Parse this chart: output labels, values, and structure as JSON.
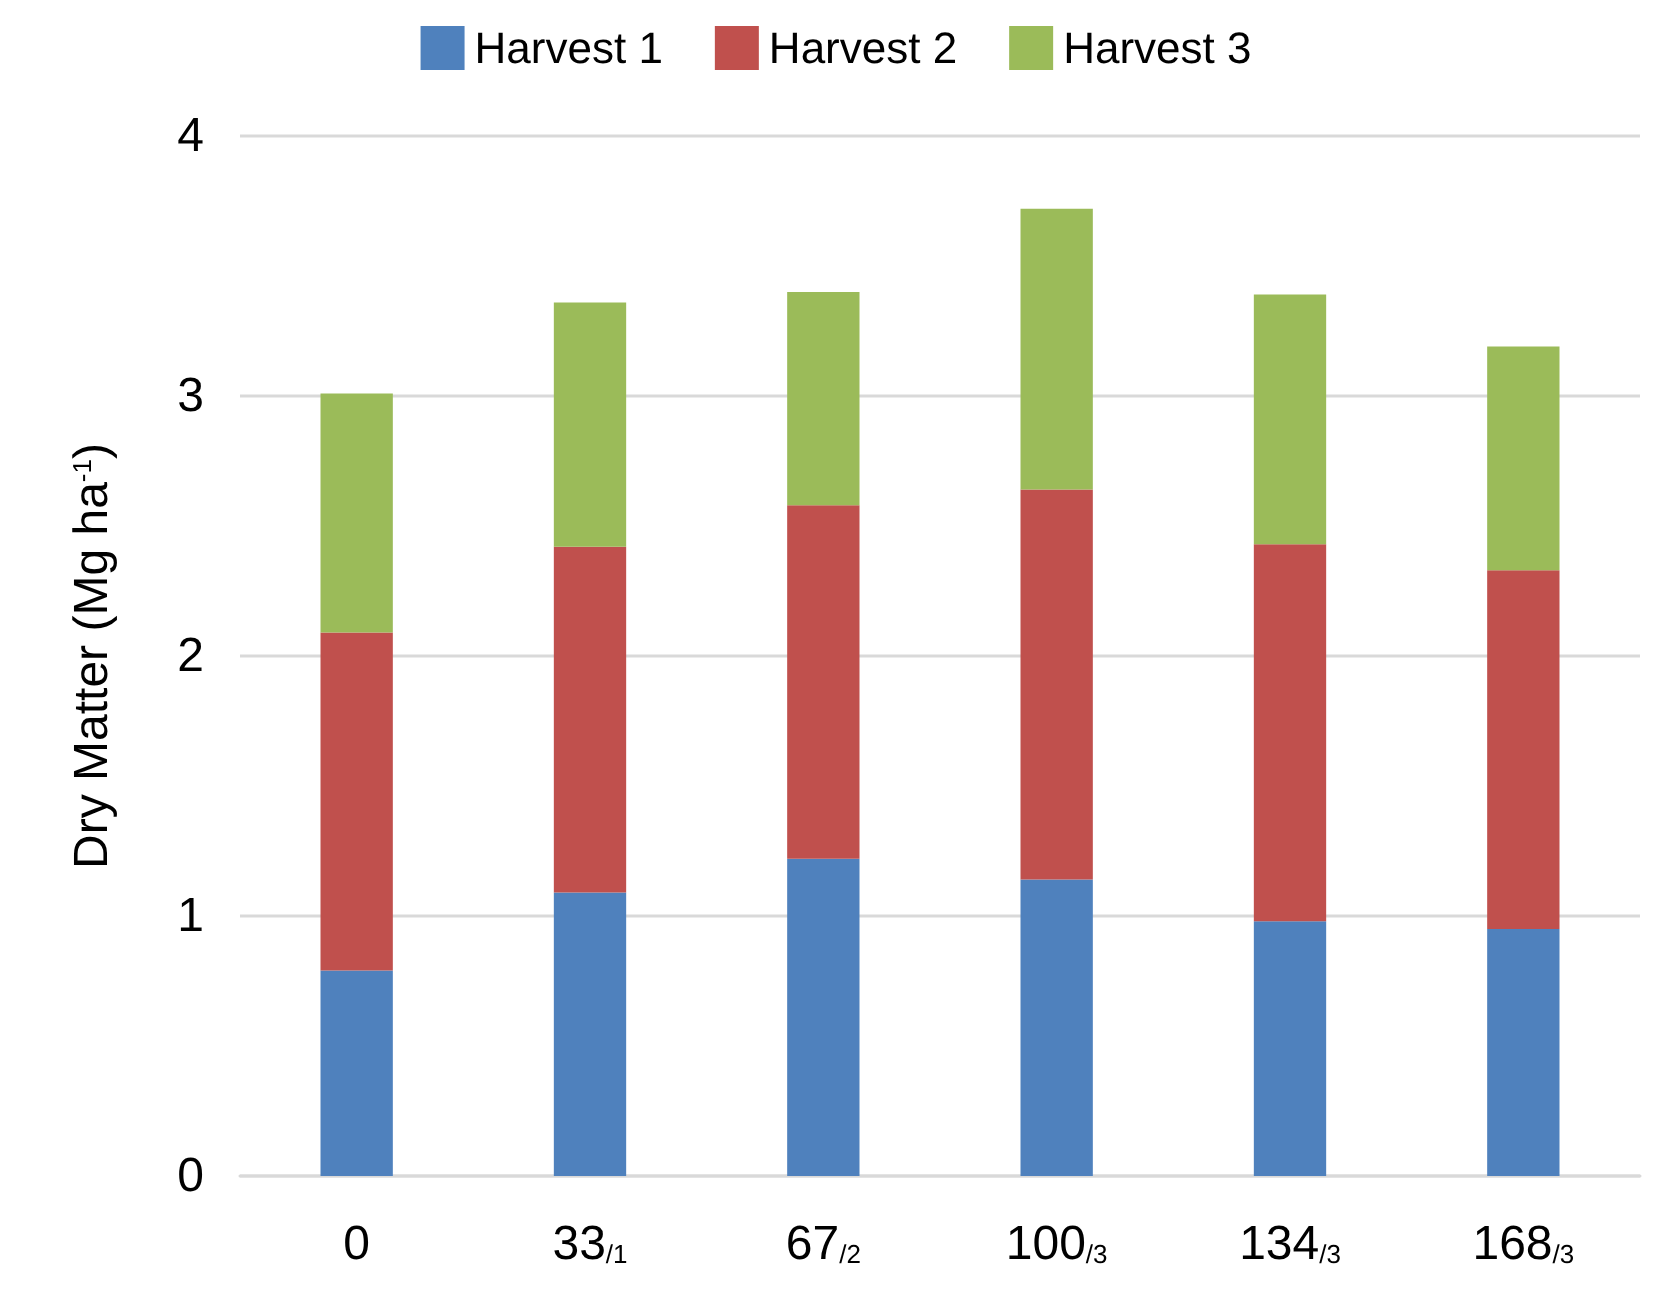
{
  "chart_data": {
    "type": "bar",
    "stacked": true,
    "ylabel": "Dry Matter (Mg ha$^{-1}$)",
    "categories": [
      "0",
      "33$_{/1}$",
      "67$_{/2}$",
      "100$_{/3}$",
      "134$_{/3}$",
      "168$_{/3}$"
    ],
    "series": [
      {
        "name": "Harvest 1",
        "color": "#4f81bd",
        "values": [
          0.79,
          1.09,
          1.22,
          1.14,
          0.98,
          0.95
        ]
      },
      {
        "name": "Harvest 2",
        "color": "#c0504d",
        "values": [
          1.3,
          1.33,
          1.36,
          1.5,
          1.45,
          1.38
        ]
      },
      {
        "name": "Harvest 3",
        "color": "#9bbb59",
        "values": [
          0.92,
          0.94,
          0.82,
          1.08,
          0.96,
          0.86
        ]
      }
    ],
    "ylim": [
      0,
      4
    ],
    "yticks": [
      0,
      1,
      2,
      3,
      4
    ],
    "grid": "y",
    "legend": "top"
  }
}
